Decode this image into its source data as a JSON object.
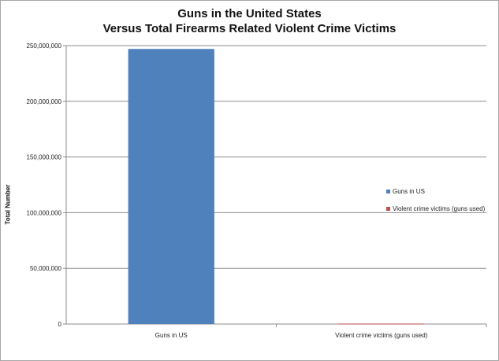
{
  "chart_data": {
    "type": "bar",
    "title_line1": "Guns in the United States",
    "title_line2": "Versus Total Firearms Related Violent Crime Victims",
    "ylabel": "Total Number",
    "xlabel": "",
    "categories": [
      "Guns in US",
      "Violent crime victims (guns used)"
    ],
    "values": [
      247000000,
      400000
    ],
    "colors": [
      "#4f81bd",
      "#c0504d"
    ],
    "ylim": [
      0,
      250000000
    ],
    "yticks": [
      0,
      50000000,
      100000000,
      150000000,
      200000000,
      250000000
    ],
    "ytick_labels": [
      "0",
      "50,000,000",
      "100,000,000",
      "150,000,000",
      "200,000,000",
      "250,000,000"
    ],
    "grid": true,
    "legend_position": "right",
    "legend": [
      {
        "label": "Guns in US",
        "color": "#4f81bd"
      },
      {
        "label": "Violent crime victims (guns used)",
        "color": "#c0504d"
      }
    ]
  }
}
